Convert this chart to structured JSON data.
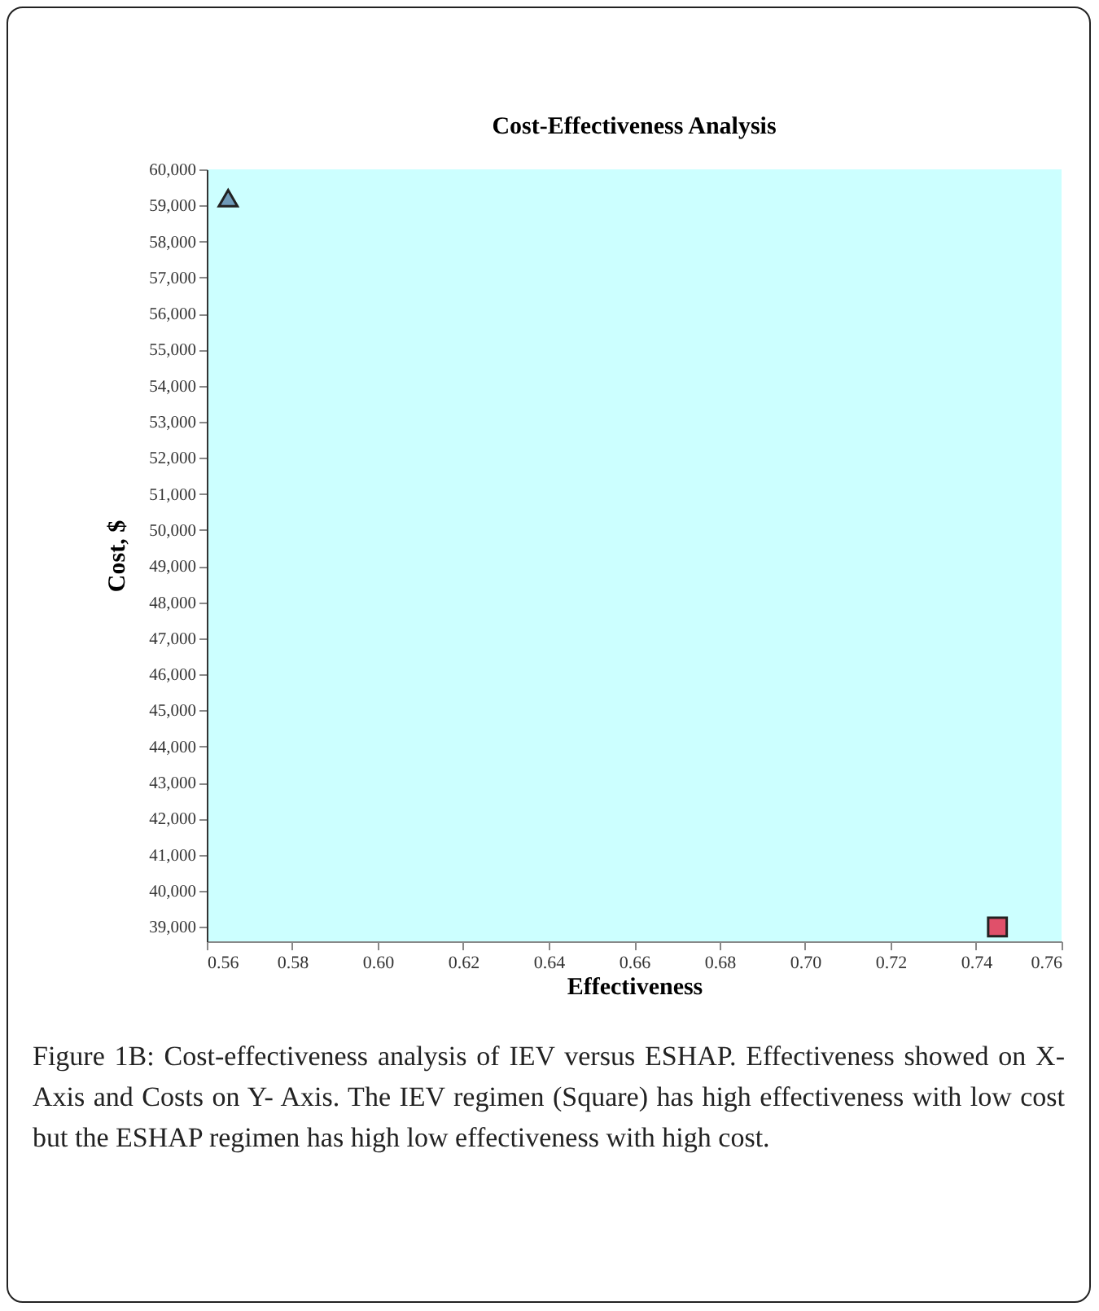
{
  "chart_data": {
    "type": "scatter",
    "title": "Cost-Effectiveness Analysis",
    "xlabel": "Effectiveness",
    "ylabel": "Cost, $",
    "annotations": [
      "Figure 1B: Cost-effectiveness analysis of IEV versus ESHAP. Effectiveness showed on X-Axis and Costs on Y- Axis. The IEV regimen (Square) has high effectiveness with low cost but the ESHAP regimen has high low effectiveness with high cost."
    ],
    "series": [
      {
        "color": "#6f9ab8",
        "marker": "triangle",
        "x": [
          0.565
        ],
        "values": [
          59200
        ]
      },
      {
        "color": "#e0506a",
        "marker": "square",
        "x": [
          0.745
        ],
        "values": [
          39000
        ]
      }
    ],
    "xlim": [
      0.56,
      0.76
    ],
    "xticks": [
      {
        "value": 0.56,
        "label": "0.56"
      },
      {
        "value": 0.58,
        "label": "0.58"
      },
      {
        "value": 0.6,
        "label": "0.60"
      },
      {
        "value": 0.62,
        "label": "0.62"
      },
      {
        "value": 0.64,
        "label": "0.64"
      },
      {
        "value": 0.66,
        "label": "0.66"
      },
      {
        "value": 0.68,
        "label": "0.68"
      },
      {
        "value": 0.7,
        "label": "0.70"
      },
      {
        "value": 0.72,
        "label": "0.72"
      },
      {
        "value": 0.74,
        "label": "0.74"
      },
      {
        "value": 0.76,
        "label": "0.76"
      }
    ],
    "ylim": [
      38600,
      60000
    ],
    "yticks": [
      {
        "value": 39000,
        "label": "39,000"
      },
      {
        "value": 40000,
        "label": "40,000"
      },
      {
        "value": 41000,
        "label": "41,000"
      },
      {
        "value": 42000,
        "label": "42,000"
      },
      {
        "value": 43000,
        "label": "43,000"
      },
      {
        "value": 44000,
        "label": "44,000"
      },
      {
        "value": 45000,
        "label": "45,000"
      },
      {
        "value": 46000,
        "label": "46,000"
      },
      {
        "value": 47000,
        "label": "47,000"
      },
      {
        "value": 48000,
        "label": "48,000"
      },
      {
        "value": 49000,
        "label": "49,000"
      },
      {
        "value": 50000,
        "label": "50,000"
      },
      {
        "value": 51000,
        "label": "51,000"
      },
      {
        "value": 52000,
        "label": "52,000"
      },
      {
        "value": 53000,
        "label": "53,000"
      },
      {
        "value": 54000,
        "label": "54,000"
      },
      {
        "value": 55000,
        "label": "55,000"
      },
      {
        "value": 56000,
        "label": "56,000"
      },
      {
        "value": 57000,
        "label": "57,000"
      },
      {
        "value": 58000,
        "label": "58,000"
      },
      {
        "value": 59000,
        "label": "59,000"
      },
      {
        "value": 60000,
        "label": "60,000"
      }
    ],
    "grid": false
  }
}
